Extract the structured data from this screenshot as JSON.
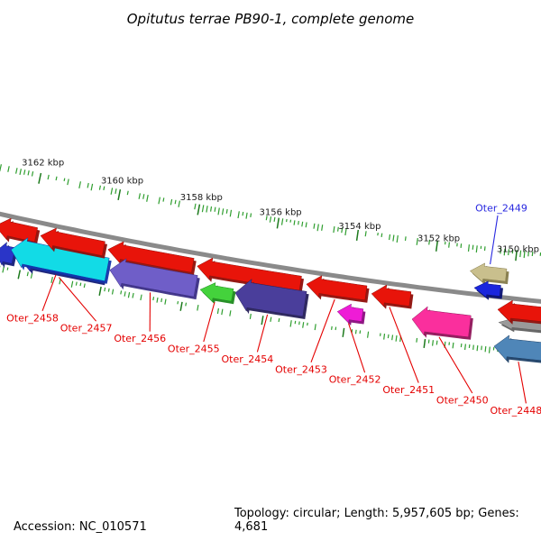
{
  "title": "Opitutus terrae PB90-1, complete genome",
  "footer": {
    "accession": "Accession: NC_010571",
    "details": "Topology: circular; Length: 5,957,605 bp; Genes: 4,681"
  },
  "style": {
    "tick_color": "#2f9e2f",
    "tick_major_color": "#1d7a1d",
    "track_color": "#8a8a8a",
    "default_label_color": "#e40000",
    "scale_label_color": "#1a1a1a"
  },
  "chart_data": {
    "type": "genome-arc-map",
    "unit": "kbp",
    "visible_range_kbp": [
      3149.0,
      3163.5
    ],
    "scale_ticks": [
      {
        "kbp": 3162,
        "label": "3162 kbp"
      },
      {
        "kbp": 3160,
        "label": "3160 kbp"
      },
      {
        "kbp": 3158,
        "label": "3158 kbp"
      },
      {
        "kbp": 3156,
        "label": "3156 kbp"
      },
      {
        "kbp": 3154,
        "label": "3154 kbp"
      },
      {
        "kbp": 3152,
        "label": "3152 kbp"
      },
      {
        "kbp": 3150,
        "label": "3150 kbp"
      }
    ],
    "genes": [
      {
        "label": "",
        "row": "r1",
        "from": 3162.82,
        "to": 3161.8,
        "color": "#e8140a",
        "shade": "#8f0e08"
      },
      {
        "label": "",
        "row": "r2b",
        "from": 3162.68,
        "to": 3162.23,
        "color": "#2a35c8",
        "shade": "#141c78"
      },
      {
        "label": "Oter_2457",
        "label_color": "#e40000",
        "row": "r2b",
        "from": 3162.1,
        "to": 3159.99,
        "color": "#2a35c8",
        "shade": "#141c78"
      },
      {
        "label": "Oter_2458",
        "label_color": "#e40000",
        "row": "r2",
        "h": 13,
        "from": 3162.32,
        "to": 3159.94,
        "color": "#12dbe6",
        "shade": "#1234aa"
      },
      {
        "label": "",
        "row": "r1",
        "from": 3161.69,
        "to": 3160.12,
        "color": "#e8140a",
        "shade": "#8f0e08"
      },
      {
        "label": "",
        "row": "r1",
        "from": 3160.01,
        "to": 3157.9,
        "color": "#e8140a",
        "shade": "#8f0e08"
      },
      {
        "label": "Oter_2456",
        "label_color": "#e40000",
        "row": "r2",
        "h": 12,
        "from": 3159.87,
        "to": 3157.74,
        "color": "#6f5ec8",
        "shade": "#3a2d85"
      },
      {
        "label": "",
        "row": "r1",
        "from": 3157.79,
        "to": 3155.22,
        "color": "#e8140a",
        "shade": "#8f0e08"
      },
      {
        "label": "Oter_2455",
        "label_color": "#e40000",
        "row": "r2s",
        "from": 3157.62,
        "to": 3156.82,
        "color": "#44d23c",
        "shade": "#1d8a1d"
      },
      {
        "label": "Oter_2454",
        "label_color": "#e40000",
        "row": "r2",
        "h": 14,
        "from": 3156.76,
        "to": 3155.04,
        "color": "#4a3e9b",
        "shade": "#262059"
      },
      {
        "label": "Oter_2453",
        "label_color": "#e40000",
        "row": "r1",
        "from": 3155.07,
        "to": 3153.59,
        "color": "#e8140a",
        "shade": "#8f0e08"
      },
      {
        "label": "Oter_2452",
        "label_color": "#e40000",
        "row": "r2s",
        "from": 3154.22,
        "to": 3153.6,
        "color": "#ee1cd6",
        "shade": "#8a0d7e"
      },
      {
        "label": "Oter_2451",
        "label_color": "#e40000",
        "row": "r1",
        "from": 3153.45,
        "to": 3152.49,
        "color": "#e8140a",
        "shade": "#8f0e08"
      },
      {
        "label": "Oter_2450",
        "label_color": "#e40000",
        "row": "r2",
        "h": 12,
        "from": 3152.38,
        "to": 3150.95,
        "color": "#fa2f9d",
        "shade": "#8f1458"
      },
      {
        "label": "",
        "row": "o2",
        "from": 3151.1,
        "to": 3150.2,
        "color": "#c9bf8d",
        "shade": "#857b4a"
      },
      {
        "label": "Oter_2449",
        "label_color": "#2828e0",
        "label_pos": "top",
        "row": "o1",
        "from": 3150.95,
        "to": 3150.3,
        "color": "#1a26dd",
        "shade": "#0a1173"
      },
      {
        "label": "",
        "row": "rg",
        "from": 3150.25,
        "to": 3149.0,
        "color": "#9a9a9a",
        "shade": "#606060"
      },
      {
        "label": "",
        "row": "r1",
        "from": 3150.31,
        "to": 3149.15,
        "color": "#e8140a",
        "shade": "#8f0e08"
      },
      {
        "label": "Oter_2448",
        "label_color": "#e40000",
        "row": "r3",
        "from": 3150.3,
        "to": 3149.03,
        "color": "#4f86b8",
        "shade": "#1c3f66"
      }
    ]
  }
}
